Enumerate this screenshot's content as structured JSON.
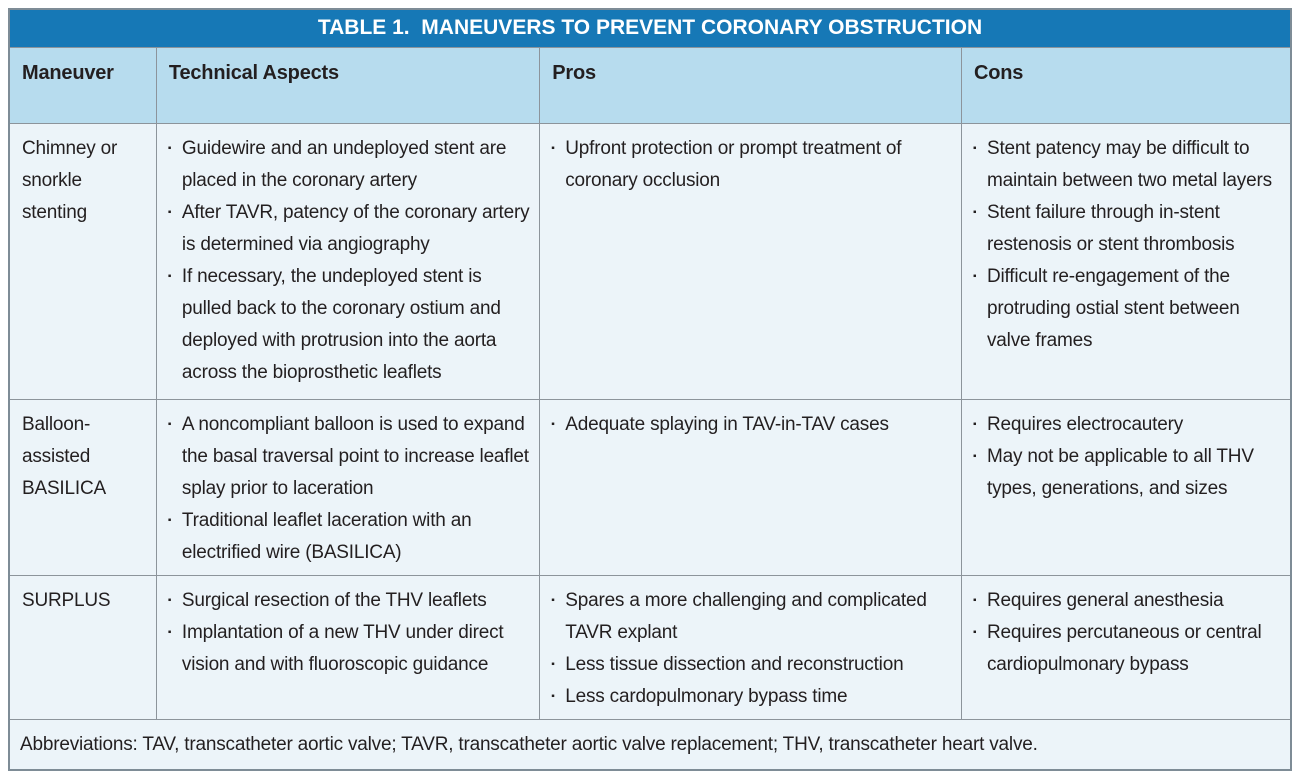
{
  "table": {
    "title": "TABLE 1.  MANEUVERS TO PREVENT CORONARY OBSTRUCTION",
    "columns": [
      "Maneuver",
      "Technical Aspects",
      "Pros",
      "Cons"
    ],
    "rows": [
      {
        "maneuver": "Chimney or snorkle stenting",
        "technical_aspects": [
          "Guidewire and an undeployed stent are placed in the coronary artery",
          "After TAVR, patency of the coronary artery is determined via angiography",
          "If necessary, the undeployed stent is pulled back to the coronary ostium and deployed with protrusion into the aorta across the bioprosthetic leaflets"
        ],
        "pros": [
          "Upfront protection or prompt treatment of coronary occlusion"
        ],
        "cons": [
          "Stent patency may be difficult to maintain between two metal layers",
          "Stent failure through in-stent restenosis or stent thrombosis",
          "Difficult re-engagement of the protruding ostial stent between valve frames"
        ]
      },
      {
        "maneuver": "Balloon-assisted BASILICA",
        "technical_aspects": [
          "A noncompliant balloon is used to expand the basal traversal point to increase leaflet splay prior to laceration",
          "Traditional leaflet laceration with an electrified wire (BASILICA)"
        ],
        "pros": [
          "Adequate splaying in TAV-in-TAV cases"
        ],
        "cons": [
          "Requires electrocautery",
          "May not be applicable to all THV types, generations, and sizes"
        ]
      },
      {
        "maneuver": "SURPLUS",
        "technical_aspects": [
          "Surgical resection of the THV leaflets",
          "Implantation of a new THV under direct vision and with fluoroscopic guidance"
        ],
        "pros": [
          "Spares a more challenging and compli­cated TAVR explant",
          "Less tissue dissection and reconstruction",
          "Less cardopulmonary bypass time"
        ],
        "cons": [
          "Requires general anesthesia",
          "Requires percutaneous or central cardiopulmonary bypass"
        ]
      }
    ],
    "footnote": "Abbreviations: TAV, transcatheter aortic valve; TAVR, transcatheter aortic valve replacement; THV, transcatheter heart valve."
  },
  "icons": {
    "bullet": "▪"
  },
  "colors": {
    "title_bar_blue": "#1678B6",
    "header_bg": "#B7DCEE",
    "body_bg": "#ECF4F9",
    "outer_border": "#7E8C96",
    "inner_border": "#8C949B",
    "text_dark": "#231F20",
    "title_text": "#FFFFFF"
  }
}
